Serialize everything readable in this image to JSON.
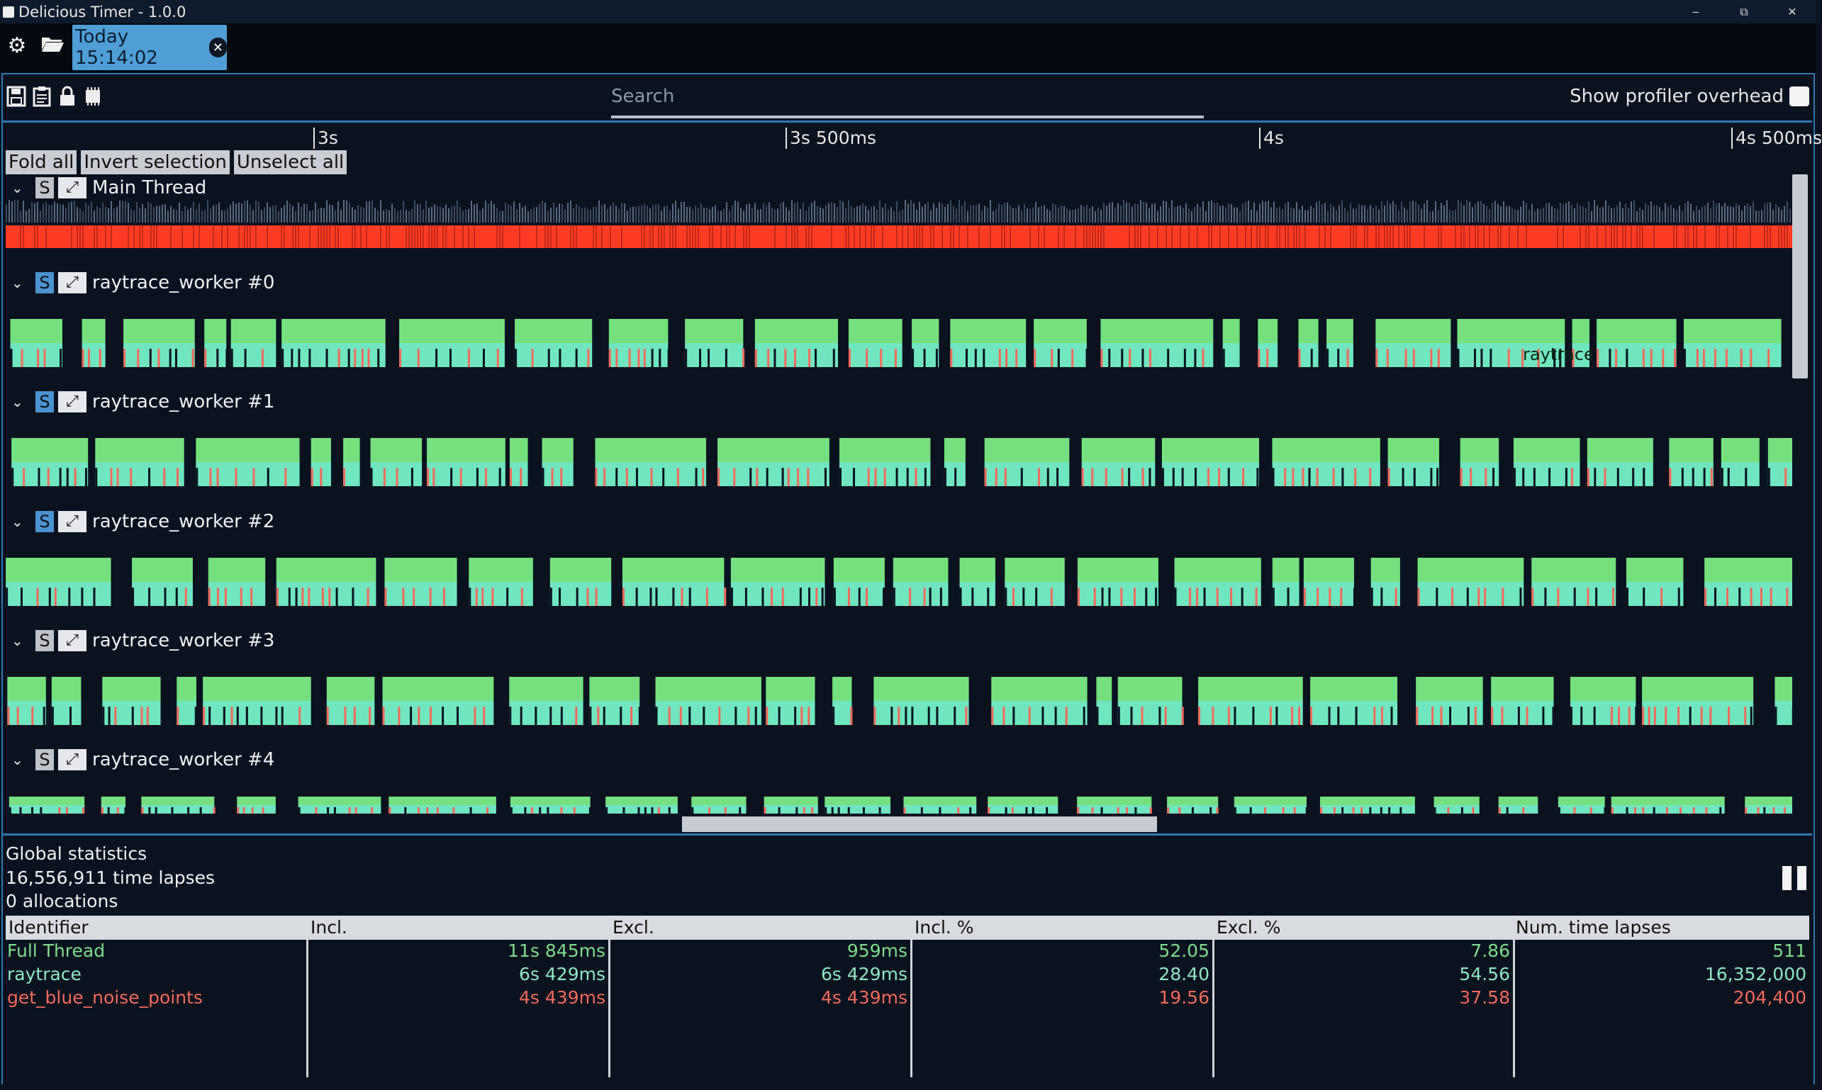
{
  "window": {
    "title": "Delicious Timer - 1.0.0",
    "minimize": "‒",
    "restore": "⧉",
    "close": "✕"
  },
  "tabbar": {
    "tab_label": "Today 15:14:02",
    "tab_close": "✕",
    "settings_icon": "gear-icon",
    "open_icon": "folder-open-icon"
  },
  "toolbar": {
    "icons": [
      "save-icon",
      "clipboard-icon",
      "lock-icon",
      "chip-icon"
    ],
    "search_placeholder": "Search",
    "overhead_label": "Show profiler overhead",
    "overhead_checked": false
  },
  "ruler": {
    "ticks": [
      "3s",
      "3s 500ms",
      "4s",
      "4s 500ms"
    ]
  },
  "buttons": {
    "fold_all": "Fold all",
    "invert_selection": "Invert selection",
    "unselect_all": "Unselect all"
  },
  "threads": [
    {
      "name": "Main Thread",
      "s": "S",
      "expand": "⤢",
      "s_active": false
    },
    {
      "name": "raytrace_worker #0",
      "s": "S",
      "expand": "⤢",
      "s_active": true,
      "bar_label": "raytrace"
    },
    {
      "name": "raytrace_worker #1",
      "s": "S",
      "expand": "⤢",
      "s_active": true
    },
    {
      "name": "raytrace_worker #2",
      "s": "S",
      "expand": "⤢",
      "s_active": true
    },
    {
      "name": "raytrace_worker #3",
      "s": "S",
      "expand": "⤢",
      "s_active": false
    },
    {
      "name": "raytrace_worker #4",
      "s": "S",
      "expand": "⤢",
      "s_active": false
    }
  ],
  "stats": {
    "title": "Global statistics",
    "time_lapses": "16,556,911 time lapses",
    "allocations": "0 allocations",
    "columns": [
      "Identifier",
      "Incl.",
      "Excl.",
      "Incl. %",
      "Excl. %",
      "Num. time lapses"
    ],
    "rows": [
      {
        "id": "Full Thread",
        "incl": "11s 845ms",
        "excl": "959ms",
        "incl_pct": "52.05",
        "excl_pct": "7.86",
        "num": "511",
        "color": "#7ddc8a"
      },
      {
        "id": "raytrace",
        "incl": "6s 429ms",
        "excl": "6s 429ms",
        "incl_pct": "28.40",
        "excl_pct": "54.56",
        "num": "16,352,000",
        "color": "#8fe6c4"
      },
      {
        "id": "get_blue_noise_points",
        "incl": "4s 439ms",
        "excl": "4s 439ms",
        "incl_pct": "19.56",
        "excl_pct": "37.58",
        "num": "204,400",
        "color": "#f26a5a"
      }
    ]
  },
  "colors": {
    "accent": "#2c78b4",
    "tab": "#4f9fd6",
    "full_thread": "#75e07d",
    "raytrace": "#6fe6c0",
    "noise": "#f26a5a",
    "main_thread": "#ff3b24"
  }
}
